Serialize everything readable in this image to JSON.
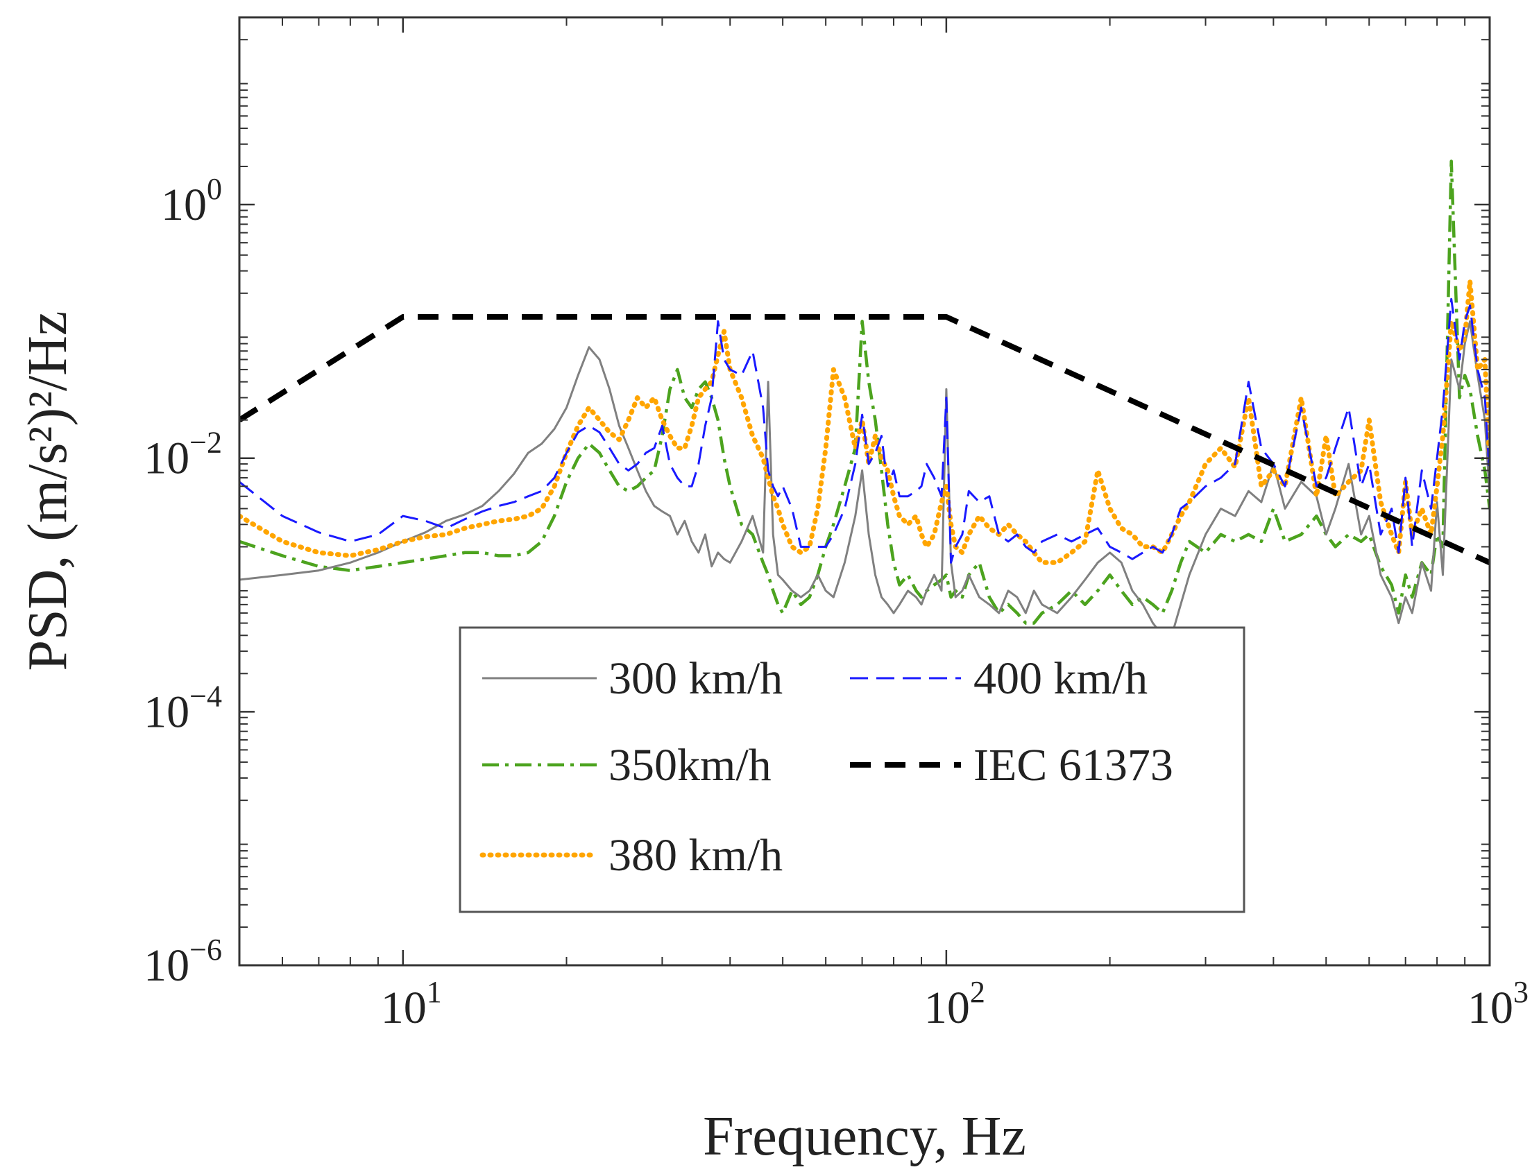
{
  "chart_data": {
    "type": "line",
    "xscale": "log",
    "yscale": "log",
    "xlabel": "Frequency, Hz",
    "ylabel": "PSD, (m/s²)²/Hz",
    "xlim": [
      5,
      1000
    ],
    "ylim": [
      1e-06,
      30
    ],
    "xticks": [
      {
        "value": 10,
        "base": "10",
        "exp": "1"
      },
      {
        "value": 100,
        "base": "10",
        "exp": "2"
      },
      {
        "value": 1000,
        "base": "10",
        "exp": "3"
      }
    ],
    "yticks": [
      {
        "value": 1e-06,
        "base": "10",
        "exp": "−6"
      },
      {
        "value": 0.0001,
        "base": "10",
        "exp": "−4"
      },
      {
        "value": 0.01,
        "base": "10",
        "exp": "−2"
      },
      {
        "value": 1,
        "base": "10",
        "exp": "0"
      }
    ],
    "series": [
      {
        "name": "300 km/h",
        "color": "#808080",
        "style": "solid",
        "x": [
          5,
          6,
          7,
          8,
          9,
          10,
          11,
          12,
          13,
          14,
          15,
          16,
          17,
          18,
          19,
          20,
          21,
          22,
          23,
          24,
          25,
          26,
          27,
          28,
          29,
          30,
          31,
          32,
          33,
          34,
          35,
          36,
          37,
          38,
          39,
          40,
          42,
          44,
          46,
          47,
          48,
          49,
          50,
          52,
          54,
          56,
          58,
          60,
          62,
          65,
          68,
          70,
          72,
          74,
          76,
          78,
          80,
          82,
          85,
          88,
          90,
          92,
          95,
          98,
          100,
          102,
          104,
          107,
          110,
          115,
          120,
          125,
          130,
          135,
          140,
          145,
          150,
          160,
          170,
          180,
          190,
          200,
          210,
          220,
          230,
          240,
          250,
          260,
          270,
          280,
          300,
          320,
          340,
          360,
          380,
          400,
          420,
          450,
          480,
          500,
          520,
          550,
          580,
          600,
          630,
          660,
          680,
          700,
          720,
          750,
          780,
          800,
          820,
          850,
          880,
          900,
          920,
          950,
          980,
          1000
        ],
        "y": [
          0.0011,
          0.0012,
          0.0013,
          0.0015,
          0.0018,
          0.0022,
          0.0026,
          0.0032,
          0.0036,
          0.0042,
          0.0055,
          0.0075,
          0.011,
          0.013,
          0.017,
          0.025,
          0.045,
          0.075,
          0.06,
          0.035,
          0.018,
          0.012,
          0.008,
          0.0055,
          0.0042,
          0.0038,
          0.0035,
          0.0025,
          0.0032,
          0.0022,
          0.0018,
          0.0025,
          0.0014,
          0.0018,
          0.0016,
          0.0015,
          0.0022,
          0.0035,
          0.0018,
          0.04,
          0.0025,
          0.0012,
          0.0011,
          0.0009,
          0.0008,
          0.0009,
          0.0012,
          0.0009,
          0.0008,
          0.0015,
          0.0035,
          0.008,
          0.0025,
          0.0012,
          0.0008,
          0.0007,
          0.0006,
          0.0007,
          0.0009,
          0.0008,
          0.0007,
          0.0009,
          0.0012,
          0.0009,
          0.035,
          0.0015,
          0.0008,
          0.0009,
          0.0012,
          0.0008,
          0.0007,
          0.0006,
          0.0009,
          0.0008,
          0.0006,
          0.0009,
          0.0007,
          0.0006,
          0.0008,
          0.0011,
          0.0015,
          0.0018,
          0.0015,
          0.0009,
          0.0007,
          0.0005,
          0.0004,
          0.0004,
          0.0007,
          0.0012,
          0.0025,
          0.004,
          0.0035,
          0.0055,
          0.0045,
          0.009,
          0.004,
          0.0065,
          0.005,
          0.0025,
          0.004,
          0.009,
          0.0025,
          0.0035,
          0.0012,
          0.0008,
          0.0005,
          0.0008,
          0.0006,
          0.0015,
          0.0009,
          0.0045,
          0.0012,
          0.06,
          0.035,
          0.08,
          0.12,
          0.045,
          0.02,
          0.005
        ]
      },
      {
        "name": "400 km/h",
        "color": "#1a1aff",
        "style": "dashed",
        "x": [
          5,
          6,
          7,
          8,
          9,
          10,
          11,
          12,
          13,
          14,
          15,
          16,
          17,
          18,
          19,
          20,
          21,
          22,
          23,
          24,
          25,
          26,
          27,
          28,
          29,
          30,
          31,
          32,
          33,
          34,
          35,
          36,
          37,
          38,
          39,
          40,
          42,
          44,
          46,
          47,
          48,
          49,
          50,
          52,
          54,
          56,
          58,
          60,
          62,
          65,
          68,
          70,
          72,
          74,
          76,
          78,
          80,
          82,
          85,
          88,
          90,
          92,
          95,
          98,
          100,
          102,
          104,
          107,
          110,
          115,
          120,
          125,
          130,
          135,
          140,
          145,
          150,
          160,
          170,
          180,
          190,
          200,
          210,
          220,
          230,
          240,
          250,
          260,
          270,
          280,
          300,
          320,
          340,
          360,
          380,
          400,
          420,
          450,
          480,
          500,
          520,
          550,
          580,
          600,
          630,
          660,
          680,
          700,
          720,
          750,
          780,
          800,
          820,
          850,
          880,
          900,
          920,
          950,
          980,
          1000
        ],
        "y": [
          0.0065,
          0.0035,
          0.0026,
          0.0022,
          0.0025,
          0.0035,
          0.0032,
          0.0028,
          0.0033,
          0.0038,
          0.0042,
          0.0045,
          0.005,
          0.0055,
          0.007,
          0.011,
          0.016,
          0.018,
          0.016,
          0.012,
          0.009,
          0.008,
          0.009,
          0.011,
          0.012,
          0.018,
          0.009,
          0.007,
          0.006,
          0.006,
          0.009,
          0.018,
          0.03,
          0.12,
          0.06,
          0.05,
          0.045,
          0.07,
          0.025,
          0.008,
          0.006,
          0.005,
          0.006,
          0.004,
          0.002,
          0.002,
          0.002,
          0.002,
          0.0025,
          0.004,
          0.009,
          0.022,
          0.009,
          0.011,
          0.015,
          0.006,
          0.008,
          0.005,
          0.005,
          0.0055,
          0.006,
          0.009,
          0.007,
          0.005,
          0.03,
          0.0015,
          0.002,
          0.0025,
          0.0055,
          0.0045,
          0.005,
          0.0025,
          0.0022,
          0.0025,
          0.002,
          0.0018,
          0.0022,
          0.0025,
          0.0022,
          0.0025,
          0.0028,
          0.002,
          0.0018,
          0.0016,
          0.0018,
          0.002,
          0.0018,
          0.0025,
          0.004,
          0.0045,
          0.006,
          0.007,
          0.009,
          0.04,
          0.012,
          0.009,
          0.006,
          0.025,
          0.006,
          0.007,
          0.012,
          0.025,
          0.006,
          0.009,
          0.0025,
          0.004,
          0.0018,
          0.007,
          0.002,
          0.008,
          0.004,
          0.01,
          0.025,
          0.18,
          0.06,
          0.12,
          0.16,
          0.05,
          0.03,
          0.007
        ]
      },
      {
        "name": "350km/h",
        "color": "#4ca31e",
        "style": "dashdot",
        "x": [
          5,
          6,
          7,
          8,
          9,
          10,
          11,
          12,
          13,
          14,
          15,
          16,
          17,
          18,
          19,
          20,
          21,
          22,
          23,
          24,
          25,
          26,
          27,
          28,
          29,
          30,
          31,
          32,
          33,
          34,
          35,
          36,
          37,
          38,
          39,
          40,
          42,
          44,
          46,
          47,
          48,
          49,
          50,
          52,
          54,
          56,
          58,
          60,
          62,
          65,
          68,
          70,
          72,
          74,
          76,
          78,
          80,
          82,
          85,
          88,
          90,
          92,
          95,
          98,
          100,
          102,
          104,
          107,
          110,
          115,
          120,
          125,
          130,
          135,
          140,
          145,
          150,
          160,
          170,
          180,
          190,
          200,
          210,
          220,
          230,
          240,
          250,
          260,
          270,
          280,
          300,
          320,
          340,
          360,
          380,
          400,
          420,
          450,
          480,
          500,
          520,
          550,
          580,
          600,
          630,
          660,
          680,
          700,
          720,
          750,
          780,
          800,
          820,
          850,
          880,
          900,
          920,
          950,
          980,
          1000
        ],
        "y": [
          0.0022,
          0.0017,
          0.0014,
          0.0013,
          0.0014,
          0.0015,
          0.0016,
          0.0017,
          0.0018,
          0.0018,
          0.0017,
          0.0017,
          0.0018,
          0.0022,
          0.0035,
          0.0065,
          0.01,
          0.013,
          0.011,
          0.008,
          0.006,
          0.0055,
          0.006,
          0.007,
          0.008,
          0.015,
          0.035,
          0.05,
          0.03,
          0.025,
          0.035,
          0.04,
          0.03,
          0.02,
          0.01,
          0.006,
          0.003,
          0.0025,
          0.0015,
          0.0012,
          0.0009,
          0.0007,
          0.0006,
          0.0009,
          0.0007,
          0.0008,
          0.0012,
          0.002,
          0.003,
          0.006,
          0.012,
          0.12,
          0.04,
          0.02,
          0.008,
          0.003,
          0.0015,
          0.001,
          0.0012,
          0.0009,
          0.0008,
          0.0009,
          0.001,
          0.0011,
          0.0012,
          0.0008,
          0.0009,
          0.0008,
          0.0012,
          0.0015,
          0.0008,
          0.0006,
          0.0007,
          0.0006,
          0.0005,
          0.0005,
          0.0006,
          0.0007,
          0.0009,
          0.0007,
          0.0009,
          0.0012,
          0.0009,
          0.0007,
          0.0008,
          0.0007,
          0.0006,
          0.0009,
          0.0015,
          0.0022,
          0.0018,
          0.0025,
          0.0022,
          0.0025,
          0.0022,
          0.004,
          0.0022,
          0.0025,
          0.0035,
          0.0025,
          0.002,
          0.0025,
          0.0022,
          0.0025,
          0.0014,
          0.001,
          0.0006,
          0.0012,
          0.0008,
          0.0015,
          0.0012,
          0.0025,
          0.002,
          2.2,
          0.03,
          0.045,
          0.035,
          0.015,
          0.008,
          0.004
        ]
      },
      {
        "name": "380 km/h",
        "color": "#ffa500",
        "style": "dotted",
        "x": [
          5,
          6,
          7,
          8,
          9,
          10,
          11,
          12,
          13,
          14,
          15,
          16,
          17,
          18,
          19,
          20,
          21,
          22,
          23,
          24,
          25,
          26,
          27,
          28,
          29,
          30,
          31,
          32,
          33,
          34,
          35,
          36,
          37,
          38,
          39,
          40,
          42,
          44,
          46,
          47,
          48,
          49,
          50,
          52,
          54,
          56,
          58,
          60,
          62,
          65,
          68,
          70,
          72,
          74,
          76,
          78,
          80,
          82,
          85,
          88,
          90,
          92,
          95,
          98,
          100,
          102,
          104,
          107,
          110,
          115,
          120,
          125,
          130,
          135,
          140,
          145,
          150,
          160,
          170,
          180,
          190,
          200,
          210,
          220,
          230,
          240,
          250,
          260,
          270,
          280,
          300,
          320,
          340,
          360,
          380,
          400,
          420,
          450,
          480,
          500,
          520,
          550,
          580,
          600,
          630,
          660,
          680,
          700,
          720,
          750,
          780,
          800,
          820,
          850,
          880,
          900,
          920,
          950,
          980,
          1000
        ],
        "y": [
          0.0035,
          0.0022,
          0.0018,
          0.0017,
          0.0019,
          0.0022,
          0.0024,
          0.0025,
          0.0028,
          0.003,
          0.0032,
          0.0033,
          0.0035,
          0.004,
          0.006,
          0.011,
          0.018,
          0.025,
          0.02,
          0.016,
          0.014,
          0.02,
          0.03,
          0.025,
          0.03,
          0.02,
          0.015,
          0.012,
          0.012,
          0.018,
          0.03,
          0.035,
          0.04,
          0.065,
          0.1,
          0.05,
          0.03,
          0.015,
          0.01,
          0.007,
          0.005,
          0.004,
          0.003,
          0.002,
          0.0018,
          0.002,
          0.004,
          0.012,
          0.05,
          0.03,
          0.012,
          0.02,
          0.009,
          0.015,
          0.01,
          0.008,
          0.005,
          0.0035,
          0.003,
          0.0035,
          0.0025,
          0.002,
          0.0025,
          0.0045,
          0.006,
          0.003,
          0.002,
          0.0018,
          0.0025,
          0.0035,
          0.0028,
          0.0025,
          0.003,
          0.0025,
          0.0022,
          0.0018,
          0.0015,
          0.0015,
          0.0018,
          0.0022,
          0.008,
          0.004,
          0.0028,
          0.0025,
          0.002,
          0.002,
          0.0018,
          0.0025,
          0.0035,
          0.0045,
          0.009,
          0.012,
          0.0085,
          0.03,
          0.006,
          0.008,
          0.006,
          0.03,
          0.005,
          0.015,
          0.005,
          0.0065,
          0.008,
          0.02,
          0.0045,
          0.0025,
          0.0018,
          0.0065,
          0.0025,
          0.004,
          0.0025,
          0.006,
          0.015,
          0.12,
          0.07,
          0.09,
          0.25,
          0.05,
          0.06,
          0.009
        ]
      },
      {
        "name": "IEC 61373",
        "color": "#000000",
        "style": "bold-dashed",
        "x": [
          5,
          10,
          100,
          1000
        ],
        "y": [
          0.02,
          0.13,
          0.13,
          0.0015
        ]
      }
    ],
    "legend_layout": [
      [
        "300 km/h",
        "400 km/h"
      ],
      [
        "350km/h",
        "IEC 61373"
      ],
      [
        "380 km/h"
      ]
    ],
    "legend_position": "lower-center"
  }
}
